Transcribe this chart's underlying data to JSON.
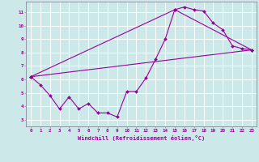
{
  "title": "",
  "xlabel": "Windchill (Refroidissement éolien,°C)",
  "ylabel": "",
  "background_color": "#cce8e8",
  "line_color": "#990099",
  "grid_color": "#ffffff",
  "xlim": [
    -0.5,
    23.5
  ],
  "ylim": [
    2.5,
    11.8
  ],
  "xticks": [
    0,
    1,
    2,
    3,
    4,
    5,
    6,
    7,
    8,
    9,
    10,
    11,
    12,
    13,
    14,
    15,
    16,
    17,
    18,
    19,
    20,
    21,
    22,
    23
  ],
  "yticks": [
    3,
    4,
    5,
    6,
    7,
    8,
    9,
    10,
    11
  ],
  "series1_x": [
    0,
    1,
    2,
    3,
    4,
    5,
    6,
    7,
    8,
    9,
    10,
    11,
    12,
    13,
    14,
    15,
    16,
    17,
    18,
    19,
    20,
    21,
    22,
    23
  ],
  "series1_y": [
    6.2,
    5.6,
    4.8,
    3.8,
    4.7,
    3.8,
    4.2,
    3.5,
    3.5,
    3.2,
    5.1,
    5.1,
    6.1,
    7.5,
    9.0,
    11.2,
    11.4,
    11.2,
    11.1,
    10.2,
    9.7,
    8.5,
    8.3,
    8.2
  ],
  "series2_x": [
    0,
    23
  ],
  "series2_y": [
    6.2,
    8.2
  ],
  "series3_x": [
    0,
    15,
    23
  ],
  "series3_y": [
    6.2,
    11.2,
    8.2
  ],
  "figsize": [
    3.2,
    2.0
  ],
  "dpi": 100
}
